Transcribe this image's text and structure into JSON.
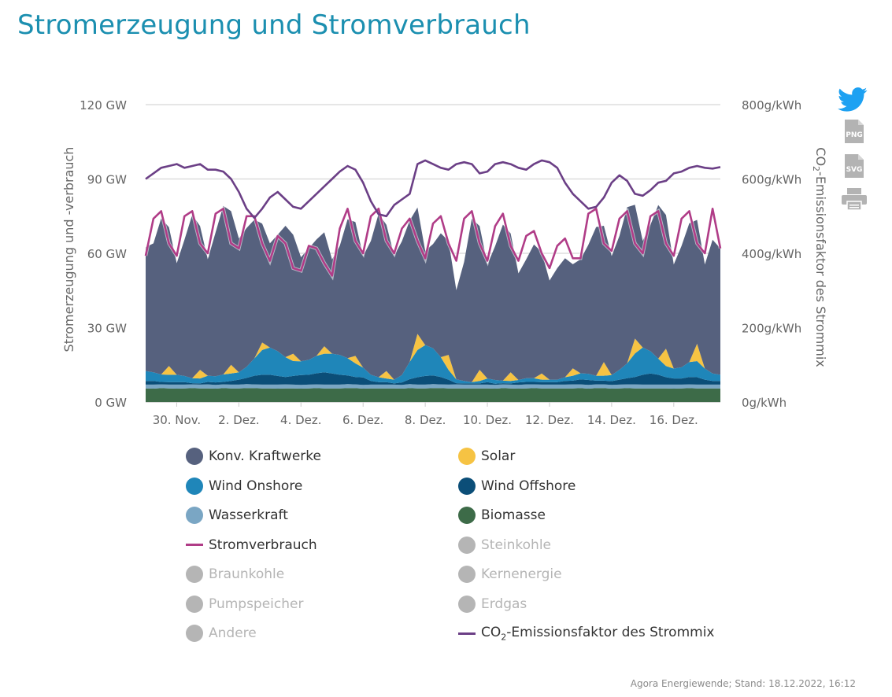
{
  "page": {
    "title": "Stromerzeugung und Stromverbrauch",
    "source": "Agora Energiewende; Stand: 18.12.2022, 16:12"
  },
  "icons": {
    "twitter": "twitter-icon",
    "png": "PNG",
    "svg": "SVG",
    "print": "printer-icon"
  },
  "colors": {
    "konv": "#56617e",
    "solar": "#f6c343",
    "wind_on": "#1f86b9",
    "wind_off": "#0b4e78",
    "wasser": "#7aa6c4",
    "biomasse": "#3d6b48",
    "verbrauch": "#b03c87",
    "co2": "#6b3f86",
    "grid": "#dddddd",
    "axis_text": "#666666",
    "disabled": "#b5b5b5"
  },
  "chart_data": {
    "type": "area",
    "x_type": "datetime",
    "x_start": "2022-11-29 00:00",
    "x_end": "2022-12-17 12:00",
    "x_step_hours": 6,
    "xticks": [
      "30. Nov.",
      "2. Dez.",
      "4. Dez.",
      "6. Dez.",
      "8. Dez.",
      "10. Dez.",
      "12. Dez.",
      "14. Dez.",
      "16. Dez."
    ],
    "ylabel": "Stromerzeugung und -verbrauch",
    "ylabel2": "CO2-Emissionsfaktor des Strommix",
    "y_ticks": [
      "0 GW",
      "30 GW",
      "60 GW",
      "90 GW",
      "120 GW"
    ],
    "y2_ticks": [
      "0g/kWh",
      "200g/kWh",
      "400g/kWh",
      "600g/kWh",
      "800g/kWh"
    ],
    "ylim": [
      0,
      120
    ],
    "y2lim": [
      0,
      800
    ],
    "grid": true,
    "series": [
      {
        "name": "Biomasse",
        "key": "biomasse",
        "kind": "area",
        "values": [
          5.5,
          5.4,
          5.6,
          5.5,
          5.4,
          5.5,
          5.6,
          5.5,
          5.5,
          5.4,
          5.6,
          5.5,
          5.5,
          5.6,
          5.6,
          5.5,
          5.5,
          5.4,
          5.5,
          5.5,
          5.4,
          5.5,
          5.6,
          5.5,
          5.5,
          5.5,
          5.6,
          5.6,
          5.4,
          5.5,
          5.5,
          5.5,
          5.5,
          5.4,
          5.6,
          5.5,
          5.5,
          5.6,
          5.6,
          5.5,
          5.5,
          5.5,
          5.5,
          5.5,
          5.5,
          5.4,
          5.6,
          5.5,
          5.4,
          5.5,
          5.6,
          5.5,
          5.5,
          5.5,
          5.5,
          5.5,
          5.6,
          5.4,
          5.6,
          5.6,
          5.4,
          5.5,
          5.6,
          5.5,
          5.5,
          5.5,
          5.5,
          5.5,
          5.4,
          5.5,
          5.6,
          5.5,
          5.5,
          5.5,
          5.5
        ]
      },
      {
        "name": "Wasserkraft",
        "key": "wasser",
        "kind": "area",
        "values": [
          1.5,
          1.6,
          1.5,
          1.5,
          1.6,
          1.5,
          1.5,
          1.5,
          1.6,
          1.5,
          1.5,
          1.5,
          1.5,
          1.6,
          1.5,
          1.5,
          1.5,
          1.6,
          1.6,
          1.5,
          1.5,
          1.5,
          1.5,
          1.5,
          1.5,
          1.5,
          1.6,
          1.5,
          1.5,
          1.5,
          1.5,
          1.5,
          1.5,
          1.5,
          1.6,
          1.5,
          1.5,
          1.6,
          1.5,
          1.5,
          1.6,
          1.5,
          1.5,
          1.5,
          1.5,
          1.5,
          1.5,
          1.5,
          1.5,
          1.6,
          1.5,
          1.5,
          1.5,
          1.5,
          1.5,
          1.6,
          1.5,
          1.5,
          1.5,
          1.5,
          1.5,
          1.5,
          1.5,
          1.6,
          1.5,
          1.5,
          1.5,
          1.5,
          1.6,
          1.5,
          1.5,
          1.5,
          1.5,
          1.5,
          1.5
        ]
      },
      {
        "name": "Wind Offshore",
        "key": "wind_off",
        "kind": "area",
        "values": [
          1.5,
          1.5,
          1.0,
          1.0,
          1.0,
          1.0,
          0.5,
          0.5,
          1.0,
          1.0,
          1.0,
          1.5,
          2.0,
          2.5,
          3.5,
          4.0,
          4.0,
          3.5,
          3.0,
          3.5,
          4.0,
          4.0,
          4.5,
          5.0,
          4.5,
          4.0,
          3.5,
          3.0,
          3.0,
          1.5,
          1.0,
          1.0,
          0.5,
          1.0,
          2.0,
          3.0,
          3.5,
          3.5,
          3.0,
          2.0,
          0.5,
          0.5,
          0.5,
          0.5,
          1.0,
          0.5,
          0.5,
          0.5,
          1.0,
          1.0,
          1.0,
          1.0,
          1.0,
          1.0,
          1.5,
          1.5,
          2.0,
          2.0,
          1.5,
          1.5,
          1.5,
          2.0,
          2.5,
          3.0,
          4.0,
          4.5,
          4.0,
          3.0,
          2.5,
          2.5,
          3.0,
          3.0,
          2.0,
          1.5,
          1.5
        ]
      },
      {
        "name": "Wind Onshore",
        "key": "wind_on",
        "kind": "area",
        "values": [
          4.0,
          3.5,
          3.0,
          3.0,
          3.0,
          2.5,
          2.0,
          2.0,
          2.5,
          2.5,
          3.0,
          3.0,
          3.0,
          4.5,
          7.0,
          10.0,
          11.0,
          10.0,
          8.0,
          6.0,
          5.5,
          6.0,
          7.0,
          7.5,
          8.0,
          8.0,
          7.0,
          5.5,
          4.0,
          2.5,
          2.0,
          1.5,
          1.5,
          3.0,
          7.0,
          11.0,
          12.5,
          11.0,
          8.0,
          4.0,
          1.5,
          1.0,
          0.5,
          1.0,
          1.5,
          1.5,
          1.0,
          1.0,
          1.0,
          1.5,
          1.5,
          1.0,
          1.0,
          1.0,
          1.5,
          2.0,
          2.5,
          2.5,
          2.0,
          2.0,
          2.5,
          4.0,
          6.0,
          9.5,
          11.0,
          9.0,
          6.5,
          4.5,
          4.0,
          4.5,
          6.0,
          6.5,
          4.5,
          3.0,
          2.5
        ]
      },
      {
        "name": "Solar",
        "key": "solar",
        "kind": "area",
        "values": [
          0,
          0,
          0,
          3.5,
          0,
          0,
          0,
          3.5,
          0,
          0,
          0,
          3.5,
          0,
          0,
          0,
          3.0,
          0,
          0,
          0,
          3.0,
          0,
          0,
          0,
          3.0,
          0,
          0,
          0,
          3.0,
          0,
          0,
          0,
          3.0,
          0,
          0,
          0,
          6.5,
          0,
          0,
          0,
          6.0,
          0,
          0,
          0,
          4.5,
          0,
          0,
          0,
          3.5,
          0,
          0,
          0,
          2.5,
          0,
          0,
          0,
          3.0,
          0,
          0,
          0,
          5.5,
          0,
          0,
          0,
          6.0,
          0,
          0,
          0,
          7.0,
          0,
          0,
          0,
          7.0,
          0,
          0,
          0
        ]
      },
      {
        "name": "Konv. Kraftwerke",
        "key": "konv",
        "kind": "area",
        "values": [
          50.0,
          52.0,
          63.0,
          56.0,
          45.0,
          55.0,
          66.0,
          58.0,
          47.0,
          58.0,
          68.0,
          62.0,
          54.0,
          56.0,
          56.0,
          48.0,
          42.0,
          47.0,
          53.0,
          48.0,
          42.0,
          45.0,
          47.0,
          46.0,
          38.0,
          44.0,
          56.0,
          54.0,
          45.0,
          54.0,
          66.0,
          59.0,
          50.0,
          54.0,
          57.0,
          51.0,
          38.0,
          42.0,
          50.0,
          46.0,
          36.0,
          48.0,
          66.0,
          58.0,
          46.0,
          54.0,
          63.0,
          56.0,
          43.0,
          48.0,
          54.0,
          49.0,
          40.0,
          45.0,
          48.0,
          42.0,
          46.0,
          52.0,
          60.0,
          55.0,
          48.0,
          54.0,
          63.0,
          54.0,
          43.0,
          51.0,
          62.0,
          54.0,
          42.0,
          49.0,
          56.0,
          50.0,
          42.0,
          54.0,
          51.0
        ]
      },
      {
        "name": "Stromverbrauch",
        "key": "verbrauch",
        "kind": "line",
        "axis": "left",
        "values": [
          59.0,
          74.0,
          77.0,
          64.0,
          59.0,
          75.0,
          77.0,
          64.0,
          60.0,
          76.0,
          78.0,
          64.0,
          62.0,
          75.0,
          75.0,
          64.0,
          57.0,
          67.0,
          64.0,
          54.0,
          53.0,
          63.0,
          62.0,
          56.0,
          51.0,
          70.0,
          78.0,
          65.0,
          60.0,
          75.0,
          78.0,
          65.0,
          60.0,
          70.0,
          74.0,
          65.0,
          58.0,
          72.0,
          75.0,
          64.0,
          57.0,
          74.0,
          77.0,
          64.0,
          57.0,
          71.0,
          76.0,
          63.0,
          57.0,
          67.0,
          69.0,
          60.0,
          54.0,
          63.0,
          66.0,
          58.0,
          58.0,
          76.0,
          78.0,
          64.0,
          61.0,
          74.0,
          77.0,
          64.0,
          60.0,
          75.0,
          77.0,
          64.0,
          59.0,
          74.0,
          77.0,
          64.0,
          60.0,
          78.0,
          62.0
        ]
      },
      {
        "name": "CO2-Emissionsfaktor des Strommix",
        "key": "co2",
        "kind": "line",
        "axis": "right",
        "values": [
          600.0,
          615.0,
          630.0,
          635.0,
          640.0,
          630.0,
          635.0,
          640.0,
          625.0,
          625.0,
          620.0,
          600.0,
          565.0,
          520.0,
          495.0,
          520.0,
          550.0,
          565.0,
          545.0,
          525.0,
          520.0,
          540.0,
          560.0,
          580.0,
          600.0,
          620.0,
          635.0,
          625.0,
          590.0,
          540.0,
          505.0,
          500.0,
          530.0,
          545.0,
          560.0,
          640.0,
          650.0,
          640.0,
          630.0,
          625.0,
          640.0,
          645.0,
          640.0,
          615.0,
          620.0,
          640.0,
          645.0,
          640.0,
          630.0,
          625.0,
          640.0,
          650.0,
          645.0,
          630.0,
          590.0,
          560.0,
          540.0,
          520.0,
          525.0,
          550.0,
          590.0,
          610.0,
          595.0,
          560.0,
          555.0,
          570.0,
          590.0,
          595.0,
          615.0,
          620.0,
          630.0,
          635.0,
          630.0,
          628.0,
          632.0
        ]
      }
    ]
  },
  "legend": {
    "items": [
      {
        "label": "Konv. Kraftwerke",
        "key": "konv",
        "type": "dot",
        "active": true
      },
      {
        "label": "Solar",
        "key": "solar",
        "type": "dot",
        "active": true
      },
      {
        "label": "Wind Onshore",
        "key": "wind_on",
        "type": "dot",
        "active": true
      },
      {
        "label": "Wind Offshore",
        "key": "wind_off",
        "type": "dot",
        "active": true
      },
      {
        "label": "Wasserkraft",
        "key": "wasser",
        "type": "dot",
        "active": true
      },
      {
        "label": "Biomasse",
        "key": "biomasse",
        "type": "dot",
        "active": true
      },
      {
        "label": "Stromverbrauch",
        "key": "verbrauch",
        "type": "line",
        "active": true
      },
      {
        "label": "Steinkohle",
        "key": "steinkohle",
        "type": "dot",
        "active": false
      },
      {
        "label": "Braunkohle",
        "key": "braunkohle",
        "type": "dot",
        "active": false
      },
      {
        "label": "Kernenergie",
        "key": "kernenergie",
        "type": "dot",
        "active": false
      },
      {
        "label": "Pumpspeicher",
        "key": "pumpspeicher",
        "type": "dot",
        "active": false
      },
      {
        "label": "Erdgas",
        "key": "erdgas",
        "type": "dot",
        "active": false
      },
      {
        "label": "Andere",
        "key": "andere",
        "type": "dot",
        "active": false
      },
      {
        "label": "CO2-Emissionsfaktor des Strommix",
        "key": "co2",
        "type": "line",
        "active": true
      }
    ]
  }
}
